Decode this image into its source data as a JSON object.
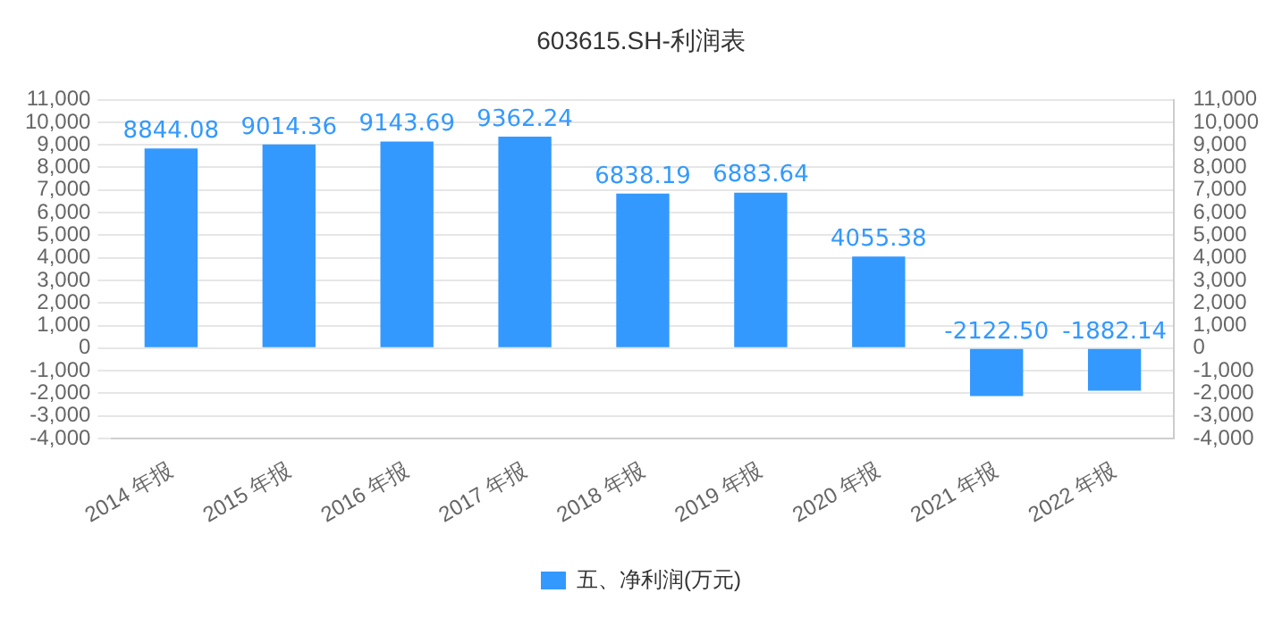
{
  "chart_data": {
    "type": "bar",
    "title": "603615.SH-利润表",
    "categories": [
      "2014 年报",
      "2015 年报",
      "2016 年报",
      "2017 年报",
      "2018 年报",
      "2019 年报",
      "2020 年报",
      "2021 年报",
      "2022 年报"
    ],
    "series": [
      {
        "name": "五、净利润(万元)",
        "color": "#3399ff",
        "values": [
          8844.08,
          9014.36,
          9143.69,
          9362.24,
          6838.19,
          6883.64,
          4055.38,
          -2122.5,
          -1882.14
        ],
        "value_labels": [
          "8844.08",
          "9014.36",
          "9143.69",
          "9362.24",
          "6838.19",
          "6883.64",
          "4055.38",
          "-2122.50",
          "-1882.14"
        ]
      }
    ],
    "ylim": [
      -4000,
      11000
    ],
    "yticks": [
      {
        "value": -4000,
        "label": "-4,000"
      },
      {
        "value": -3000,
        "label": "-3,000"
      },
      {
        "value": -2000,
        "label": "-2,000"
      },
      {
        "value": -1000,
        "label": "-1,000"
      },
      0,
      {
        "value": 1000,
        "label": "1,000"
      },
      {
        "value": 2000,
        "label": "2,000"
      },
      {
        "value": 3000,
        "label": "3,000"
      },
      {
        "value": 4000,
        "label": "4,000"
      },
      {
        "value": 5000,
        "label": "5,000"
      },
      {
        "value": 6000,
        "label": "6,000"
      },
      {
        "value": 7000,
        "label": "7,000"
      },
      {
        "value": 8000,
        "label": "8,000"
      },
      {
        "value": 9000,
        "label": "9,000"
      },
      {
        "value": 10000,
        "label": "10,000"
      },
      {
        "value": 11000,
        "label": "11,000"
      }
    ],
    "y2lim": [
      -4000,
      11000
    ],
    "y2ticks": [
      {
        "value": -4000,
        "label": "-4,000"
      },
      {
        "value": -3000,
        "label": "-3,000"
      },
      {
        "value": -2000,
        "label": "-2,000"
      },
      {
        "value": -1000,
        "label": "-1,000"
      },
      0,
      {
        "value": 1000,
        "label": "1,000"
      },
      {
        "value": 2000,
        "label": "2,000"
      },
      {
        "value": 3000,
        "label": "3,000"
      },
      {
        "value": 4000,
        "label": "4,000"
      },
      {
        "value": 5000,
        "label": "5,000"
      },
      {
        "value": 6000,
        "label": "6,000"
      },
      {
        "value": 7000,
        "label": "7,000"
      },
      {
        "value": 8000,
        "label": "8,000"
      },
      {
        "value": 9000,
        "label": "9,000"
      },
      {
        "value": 10000,
        "label": "10,000"
      },
      {
        "value": 11000,
        "label": "11,000"
      }
    ],
    "grid": "y",
    "legend": "bottom"
  }
}
